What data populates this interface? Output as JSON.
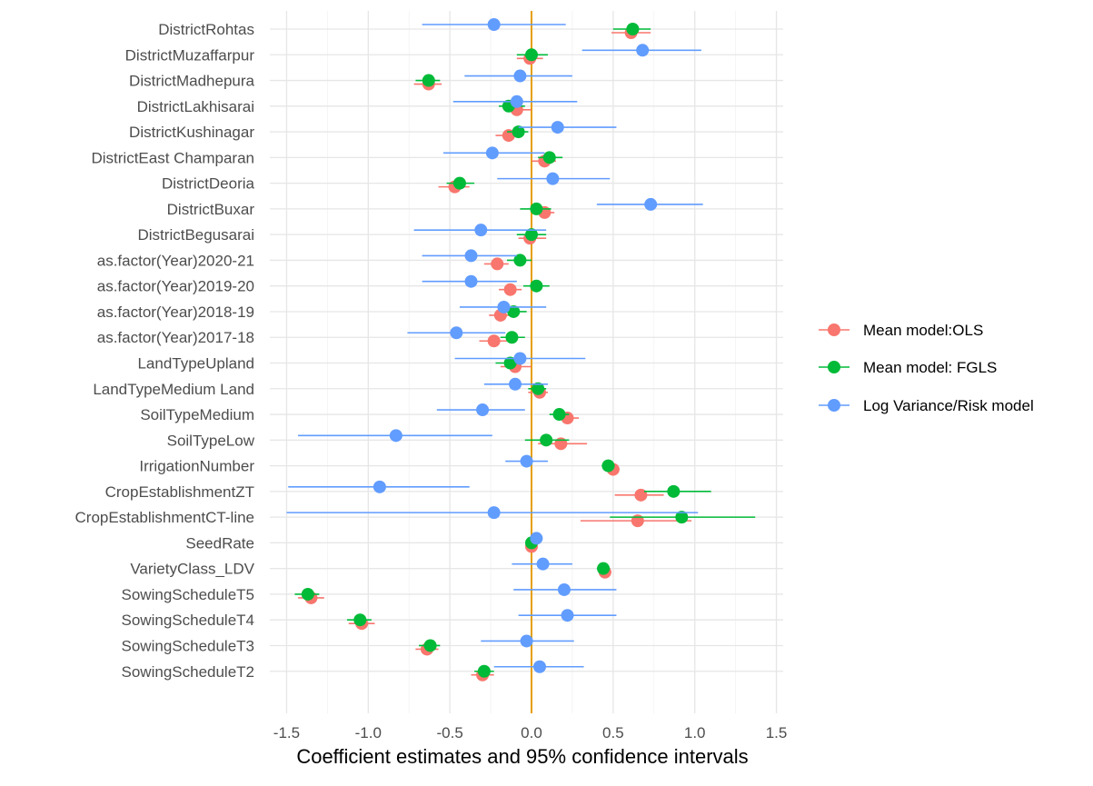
{
  "chart_data": {
    "type": "scatter",
    "subtype": "coefficient-plot-with-error-bars",
    "xlabel": "Coefficient estimates and 95% confidence intervals",
    "ylabel": "",
    "xlim": [
      -1.6,
      1.55
    ],
    "xticks": [
      -1.5,
      -1.0,
      -0.5,
      0.0,
      0.5,
      1.0,
      1.5
    ],
    "xtick_labels": [
      "-1.5",
      "-1.0",
      "-0.5",
      "0.0",
      "0.5",
      "1.0",
      "1.5"
    ],
    "grid": true,
    "reference_line": {
      "x": 0,
      "color": "#E69F00"
    },
    "legend_position": "right",
    "categories": [
      "DistrictRohtas",
      "DistrictMuzaffarpur",
      "DistrictMadhepura",
      "DistrictLakhisarai",
      "DistrictKushinagar",
      "DistrictEast Champaran",
      "DistrictDeoria",
      "DistrictBuxar",
      "DistrictBegusarai",
      "as.factor(Year)2020-21",
      "as.factor(Year)2019-20",
      "as.factor(Year)2018-19",
      "as.factor(Year)2017-18",
      "LandTypeUpland",
      "LandTypeMedium Land",
      "SoilTypeMedium",
      "SoilTypeLow",
      "IrrigationNumber",
      "CropEstablishmentZT",
      "CropEstablishmentCT-line",
      "SeedRate",
      "VarietyClass_LDV",
      "SowingScheduleT5",
      "SowingScheduleT4",
      "SowingScheduleT3",
      "SowingScheduleT2"
    ],
    "series": [
      {
        "name": "Mean model:OLS",
        "color": "#F8766D",
        "estimate": [
          0.61,
          -0.01,
          -0.63,
          -0.09,
          -0.14,
          0.08,
          -0.47,
          0.08,
          -0.01,
          -0.21,
          -0.13,
          -0.19,
          -0.23,
          -0.1,
          0.05,
          0.22,
          0.18,
          0.5,
          0.67,
          0.65,
          0.0,
          0.45,
          -1.35,
          -1.04,
          -0.64,
          -0.3
        ],
        "lower": [
          0.49,
          -0.09,
          -0.72,
          -0.16,
          -0.22,
          0.0,
          -0.57,
          0.0,
          -0.08,
          -0.29,
          -0.2,
          -0.26,
          -0.32,
          -0.19,
          -0.02,
          0.16,
          0.04,
          0.46,
          0.51,
          0.3,
          -0.02,
          0.41,
          -1.43,
          -1.12,
          -0.71,
          -0.37
        ],
        "upper": [
          0.73,
          0.07,
          -0.55,
          0.0,
          -0.07,
          0.15,
          -0.38,
          0.14,
          0.09,
          -0.14,
          -0.06,
          -0.12,
          -0.15,
          0.0,
          0.1,
          0.29,
          0.34,
          0.54,
          0.81,
          0.98,
          0.02,
          0.49,
          -1.27,
          -0.96,
          -0.57,
          -0.23
        ]
      },
      {
        "name": "Mean model: FGLS",
        "color": "#00BA38",
        "estimate": [
          0.62,
          0.0,
          -0.63,
          -0.14,
          -0.08,
          0.11,
          -0.44,
          0.03,
          0.0,
          -0.07,
          0.03,
          -0.11,
          -0.12,
          -0.13,
          0.04,
          0.17,
          0.09,
          0.47,
          0.87,
          0.92,
          0.0,
          0.44,
          -1.37,
          -1.05,
          -0.62,
          -0.29
        ],
        "lower": [
          0.5,
          -0.09,
          -0.71,
          -0.2,
          -0.15,
          0.04,
          -0.52,
          -0.07,
          -0.09,
          -0.15,
          -0.05,
          -0.17,
          -0.19,
          -0.22,
          -0.02,
          0.11,
          -0.04,
          0.43,
          0.69,
          0.48,
          -0.02,
          0.4,
          -1.45,
          -1.13,
          -0.69,
          -0.35
        ],
        "upper": [
          0.73,
          0.1,
          -0.56,
          -0.04,
          -0.02,
          0.19,
          -0.35,
          0.12,
          0.09,
          0.0,
          0.11,
          -0.03,
          -0.04,
          -0.05,
          0.09,
          0.23,
          0.23,
          0.51,
          1.1,
          1.37,
          0.02,
          0.48,
          -1.3,
          -0.98,
          -0.56,
          -0.23
        ]
      },
      {
        "name": "Log Variance/Risk model",
        "color": "#619CFF",
        "estimate": [
          -0.23,
          0.68,
          -0.07,
          -0.09,
          0.16,
          -0.24,
          0.13,
          0.73,
          -0.31,
          -0.37,
          -0.37,
          -0.17,
          -0.46,
          -0.07,
          -0.1,
          -0.3,
          -0.83,
          -0.03,
          -0.93,
          -0.23,
          0.03,
          0.07,
          0.2,
          0.22,
          -0.03,
          0.05
        ],
        "lower": [
          -0.67,
          0.31,
          -0.41,
          -0.48,
          -0.08,
          -0.54,
          -0.21,
          0.4,
          -0.72,
          -0.67,
          -0.67,
          -0.44,
          -0.76,
          -0.47,
          -0.29,
          -0.58,
          -1.43,
          -0.16,
          -1.49,
          -1.5,
          0.01,
          -0.12,
          -0.11,
          -0.08,
          -0.31,
          -0.23
        ],
        "upper": [
          0.21,
          1.04,
          0.25,
          0.28,
          0.52,
          0.08,
          0.48,
          1.05,
          0.09,
          -0.09,
          -0.09,
          0.09,
          -0.16,
          0.33,
          0.1,
          -0.04,
          -0.24,
          0.1,
          -0.38,
          1.02,
          0.05,
          0.25,
          0.52,
          0.52,
          0.26,
          0.32
        ]
      }
    ]
  }
}
